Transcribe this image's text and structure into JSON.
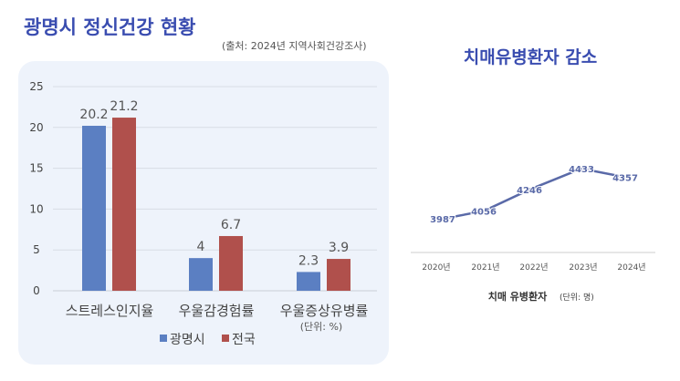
{
  "header": {
    "title": "광명시 정신건강 현황",
    "source": "(출처: 2024년 지역사회건강조사)"
  },
  "colors": {
    "title": "#3a4db0",
    "gwangmyeong": "#5b7fc2",
    "national": "#b0504c",
    "line": "#5a6aa8"
  },
  "chart_data": [
    {
      "type": "bar",
      "categories": [
        "스트레스인지율",
        "우울감경험률",
        "우울증상유병률"
      ],
      "series": [
        {
          "name": "광명시",
          "values": [
            20.2,
            4,
            2.3
          ]
        },
        {
          "name": "전국",
          "values": [
            21.2,
            6.7,
            3.9
          ]
        }
      ],
      "yticks": [
        0,
        5,
        10,
        15,
        20,
        25
      ],
      "ylim": [
        0,
        25
      ],
      "grid": true,
      "unit_note": "(단위: %)",
      "legend": "bottom"
    },
    {
      "type": "line",
      "title": "치매유병환자 감소",
      "categories": [
        "2020년",
        "2021년",
        "2022년",
        "2023년",
        "2024년"
      ],
      "values": [
        3987,
        4056,
        4246,
        4433,
        4357
      ],
      "xlabel": "치매 유병환자",
      "xlabel_unit": "(단위: 명)",
      "grid": false
    }
  ]
}
